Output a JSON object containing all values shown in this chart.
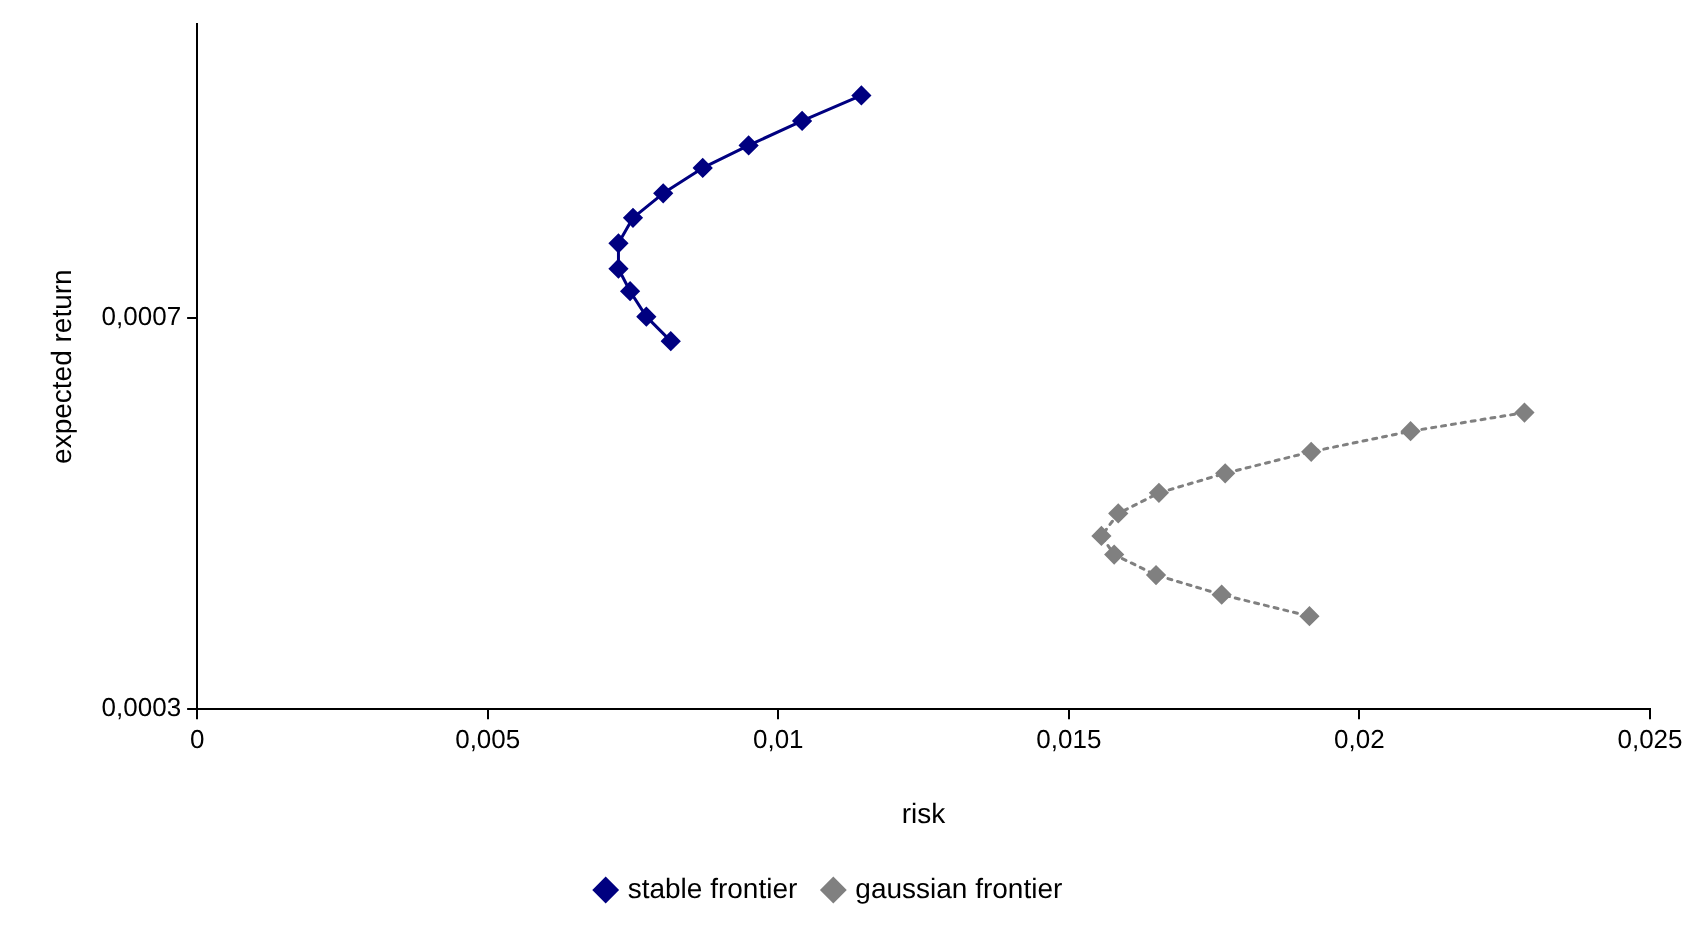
{
  "chart_data": {
    "type": "line",
    "xlabel": "risk",
    "ylabel": "expected return",
    "xlim": [
      0,
      0.025
    ],
    "xticks": [
      0,
      {
        "value": 0.005,
        "label": "0,005"
      },
      {
        "value": 0.01,
        "label": "0,01"
      },
      {
        "value": 0.015,
        "label": "0,015"
      },
      {
        "value": 0.02,
        "label": "0,02"
      },
      {
        "value": 0.025,
        "label": "0,025"
      }
    ],
    "ylim": [
      0.0003,
      0.001
    ],
    "yticks": [
      {
        "value": 0.0003,
        "label": "0,0003"
      },
      {
        "value": 0.0007,
        "label": "0,0007"
      }
    ],
    "grid": false,
    "legend": "bottom",
    "marker": "diamond",
    "series": [
      {
        "name": "stable frontier",
        "color": "#000080",
        "line_style": "solid",
        "x": [
          0.01143,
          0.01041,
          0.00949,
          0.0087,
          0.00802,
          0.0075,
          0.00725,
          0.00725,
          0.00745,
          0.00773,
          0.00815
        ],
        "values": [
          0.000927,
          0.000901,
          0.000876,
          0.000853,
          0.000827,
          0.000802,
          0.000776,
          0.00075,
          0.000727,
          0.000701,
          0.000676
        ]
      },
      {
        "name": "gaussian frontier",
        "color": "#808080",
        "line_style": "dotted",
        "x": [
          0.02284,
          0.02088,
          0.01917,
          0.01769,
          0.01655,
          0.01585,
          0.01556,
          0.01578,
          0.0165,
          0.01763,
          0.01914
        ],
        "values": [
          0.000603,
          0.000584,
          0.000563,
          0.000541,
          0.000521,
          0.0005,
          0.000477,
          0.000458,
          0.000437,
          0.000417,
          0.000395
        ]
      }
    ]
  }
}
